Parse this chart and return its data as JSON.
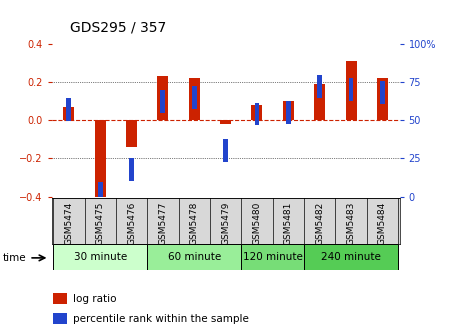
{
  "title": "GDS295 / 357",
  "samples": [
    "GSM5474",
    "GSM5475",
    "GSM5476",
    "GSM5477",
    "GSM5478",
    "GSM5479",
    "GSM5480",
    "GSM5481",
    "GSM5482",
    "GSM5483",
    "GSM5484"
  ],
  "log_ratio": [
    0.07,
    -0.41,
    -0.14,
    0.23,
    0.22,
    -0.02,
    0.08,
    0.1,
    0.19,
    0.31,
    0.22
  ],
  "percentile": [
    57,
    2,
    18,
    62,
    65,
    30,
    54,
    55,
    72,
    70,
    68
  ],
  "ylim": [
    -0.4,
    0.4
  ],
  "y2lim": [
    0,
    100
  ],
  "y_ticks": [
    -0.4,
    -0.2,
    0.0,
    0.2,
    0.4
  ],
  "y2_ticks": [
    0,
    25,
    50,
    75,
    100
  ],
  "groups": [
    {
      "label": "30 minute",
      "start": 0,
      "end": 3,
      "color": "#ccffcc"
    },
    {
      "label": "60 minute",
      "start": 3,
      "end": 6,
      "color": "#99ee99"
    },
    {
      "label": "120 minute",
      "start": 6,
      "end": 8,
      "color": "#77dd77"
    },
    {
      "label": "240 minute",
      "start": 8,
      "end": 11,
      "color": "#55cc55"
    }
  ],
  "bar_color_red": "#cc2200",
  "bar_color_blue": "#2244cc",
  "zero_line_color": "#cc2200",
  "grid_color": "#000000",
  "tick_label_color_left": "#cc2200",
  "tick_label_color_right": "#2244cc",
  "bar_width": 0.35,
  "blue_marker_size": 0.12,
  "time_label": "time"
}
